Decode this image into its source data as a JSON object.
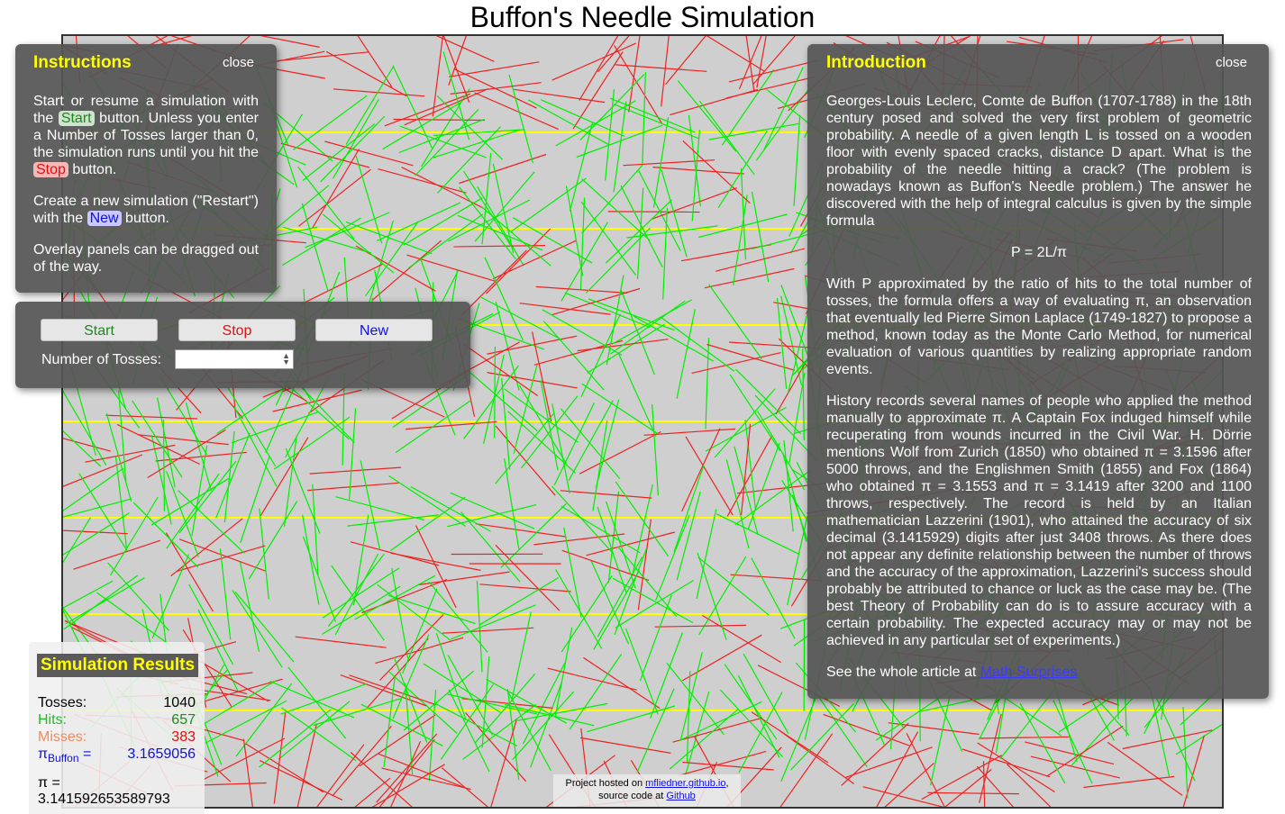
{
  "page": {
    "title": "Buffon's Needle Simulation"
  },
  "instructions": {
    "title": "Instructions",
    "close": "close",
    "p1_a": "Start or resume a simulation with the ",
    "start_tag": "Start",
    "p1_b": " button. Unless you enter a Number of Tosses larger than 0, the simulation runs until you hit the ",
    "stop_tag": "Stop",
    "p1_c": " button.",
    "p2_a": "Create a new simulation (\"Restart\") with the ",
    "new_tag": "New",
    "p2_b": " button.",
    "p3": "Overlay panels can be dragged out of the way."
  },
  "controls": {
    "start_label": "Start",
    "stop_label": "Stop",
    "new_label": "New",
    "tosses_label": "Number of Tosses:",
    "tosses_value": ""
  },
  "introduction": {
    "title": "Introduction",
    "close": "close",
    "p1": "Georges-Louis Leclerc, Comte de Buffon (1707-1788) in the 18th century posed and solved the very first problem of geometric probability. A needle of a given length L is tossed on a wooden floor with evenly spaced cracks, distance D apart. What is the probability of the needle hitting a crack? (The problem is nowadays known as Buffon's Needle problem.) The answer he discovered with the help of integral calculus is given by the simple formula",
    "formula": "P = 2L/π",
    "p2": "With P approximated by the ratio of hits to the total number of tosses, the formula offers a way of evaluating π, an observation that eventually led Pierre Simon Laplace (1749-1827) to propose a method, known today as the Monte Carlo Method, for numerical evaluation of various quantities by realizing appropriate random events.",
    "p3": "History records several names of people who applied the method manually to approximate π. A Captain Fox induged himself while recuperating from wounds incurred in the Civil War. H. Dörrie mentions Wolf from Zurich (1850) who obtained π = 3.1596 after 5000 throws, and the Englishmen Smith (1855) and Fox (1864) who obtained π = 3.1553 and π = 3.1419 after 3200 and 1100 throws, respectively. The record is held by an Italian mathematician Lazzerini (1901), who attained the accuracy of six decimal (3.1415929) digits after just 3408 throws. As there does not appear any definite relationship between the number of throws and the accuracy of the approximation, Lazzerini's success should probably be attributed to chance or luck as the case may be. (The best Theory of Probability can do is to assure accuracy with a certain probability. The expected accuracy may or may not be achieved in any particular set of experiments.)",
    "see_prefix": "See the whole article at ",
    "link_text": "Math Surprises"
  },
  "results": {
    "title": "Simulation Results",
    "tosses_label": "Tosses:",
    "tosses_value": "1040",
    "hits_label": "Hits:",
    "hits_value": "657",
    "misses_label": "Misses:",
    "misses_value": "383",
    "pi_buffon_label_main": "π",
    "pi_buffon_label_sub": "Buffon",
    "pi_buffon_label_eq": " =",
    "pi_buffon_value": "3.1659056",
    "pi_line": "π = 3.141592653589793"
  },
  "footer": {
    "hosted_prefix": "Project hosted on ",
    "hosted_link": "mfliedner.github.io",
    "hosted_suffix": ",",
    "source_prefix": "source code at ",
    "source_link": "Github"
  },
  "colors": {
    "crack": "#ffff00",
    "hit": "#00ee00",
    "miss": "#ee2222",
    "floor": "#cfcfcf",
    "panel_title": "#ffff00"
  },
  "simulation": {
    "crack_count": 7,
    "hits": 657,
    "misses": 383
  }
}
